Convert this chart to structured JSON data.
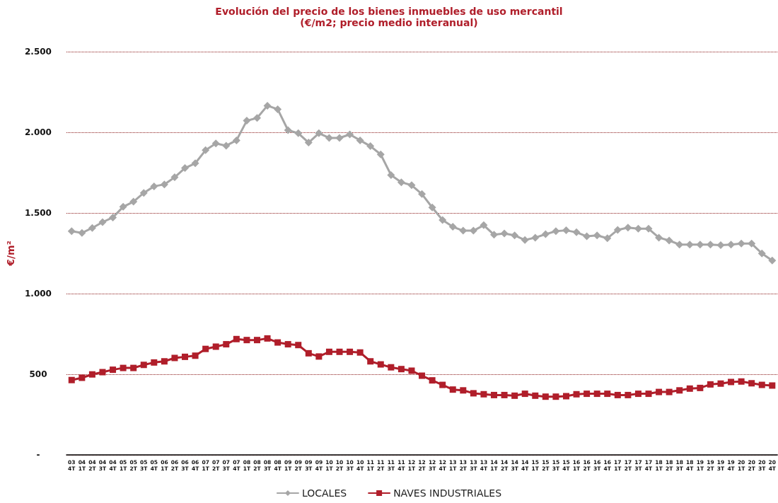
{
  "chart_data": {
    "type": "line",
    "title": "Evolución del precio de los bienes inmuebles de uso mercantil",
    "subtitle": "(€/m2; precio medio interanual)",
    "ylabel": "€/m²",
    "categories": [
      "03\n4T",
      "04\n1T",
      "04\n2T",
      "04\n3T",
      "04\n4T",
      "05\n1T",
      "05\n2T",
      "05\n3T",
      "05\n4T",
      "06\n1T",
      "06\n2T",
      "06\n3T",
      "06\n4T",
      "07\n1T",
      "07\n2T",
      "07\n3T",
      "07\n4T",
      "08\n1T",
      "08\n2T",
      "08\n3T",
      "08\n4T",
      "09\n1T",
      "09\n2T",
      "09\n3T",
      "09\n4T",
      "10\n1T",
      "10\n2T",
      "10\n3T",
      "10\n4T",
      "11\n1T",
      "11\n2T",
      "11\n3T",
      "11\n4T",
      "12\n1T",
      "12\n2T",
      "12\n3T",
      "12\n4T",
      "13\n1T",
      "13\n2T",
      "13\n3T",
      "13\n4T",
      "14\n1T",
      "14\n2T",
      "14\n3T",
      "14\n4T",
      "15\n1T",
      "15\n2T",
      "15\n3T",
      "15\n4T",
      "16\n1T",
      "16\n2T",
      "16\n3T",
      "16\n4T",
      "17\n1T",
      "17\n2T",
      "17\n3T",
      "17\n4T",
      "18\n1T",
      "18\n2T",
      "18\n3T",
      "18\n4T",
      "19\n1T",
      "19\n2T",
      "19\n3T",
      "19\n4T",
      "20\n1T",
      "20\n2T",
      "20\n3T",
      "20\n4T"
    ],
    "series": [
      {
        "name": "LOCALES",
        "color": "#a6a6a6",
        "marker": "diamond",
        "values": [
          1387,
          1376,
          1407,
          1443,
          1472,
          1538,
          1570,
          1624,
          1665,
          1677,
          1721,
          1778,
          1808,
          1889,
          1931,
          1917,
          1950,
          2072,
          2089,
          2165,
          2143,
          2013,
          1994,
          1936,
          1994,
          1965,
          1965,
          1987,
          1950,
          1914,
          1863,
          1735,
          1690,
          1672,
          1617,
          1534,
          1456,
          1414,
          1390,
          1390,
          1424,
          1365,
          1373,
          1361,
          1332,
          1347,
          1368,
          1387,
          1392,
          1380,
          1355,
          1361,
          1343,
          1395,
          1409,
          1402,
          1402,
          1347,
          1329,
          1304,
          1304,
          1304,
          1304,
          1300,
          1304,
          1310,
          1310,
          1249,
          1205
        ]
      },
      {
        "name": "NAVES INDUSTRIALES",
        "color": "#b01e2a",
        "marker": "square",
        "values": [
          464,
          478,
          499,
          513,
          528,
          539,
          539,
          558,
          573,
          580,
          601,
          608,
          615,
          657,
          671,
          686,
          718,
          712,
          712,
          722,
          697,
          686,
          681,
          630,
          610,
          639,
          639,
          639,
          635,
          580,
          561,
          543,
          532,
          522,
          491,
          462,
          434,
          405,
          400,
          382,
          376,
          371,
          371,
          367,
          379,
          367,
          361,
          361,
          364,
          376,
          379,
          379,
          379,
          371,
          371,
          379,
          379,
          390,
          390,
          400,
          411,
          415,
          437,
          442,
          452,
          455,
          444,
          434,
          430
        ]
      }
    ],
    "ylim": [
      0,
      2500
    ],
    "yticks": [
      {
        "value": 0,
        "label": "-"
      },
      500,
      {
        "value": 1000,
        "label": "1.000"
      },
      {
        "value": 1500,
        "label": "1.500"
      },
      {
        "value": 2000,
        "label": "2.000"
      },
      {
        "value": 2500,
        "label": "2.500"
      }
    ],
    "grid": "y",
    "legend": "bottom",
    "line_style": "solid"
  }
}
